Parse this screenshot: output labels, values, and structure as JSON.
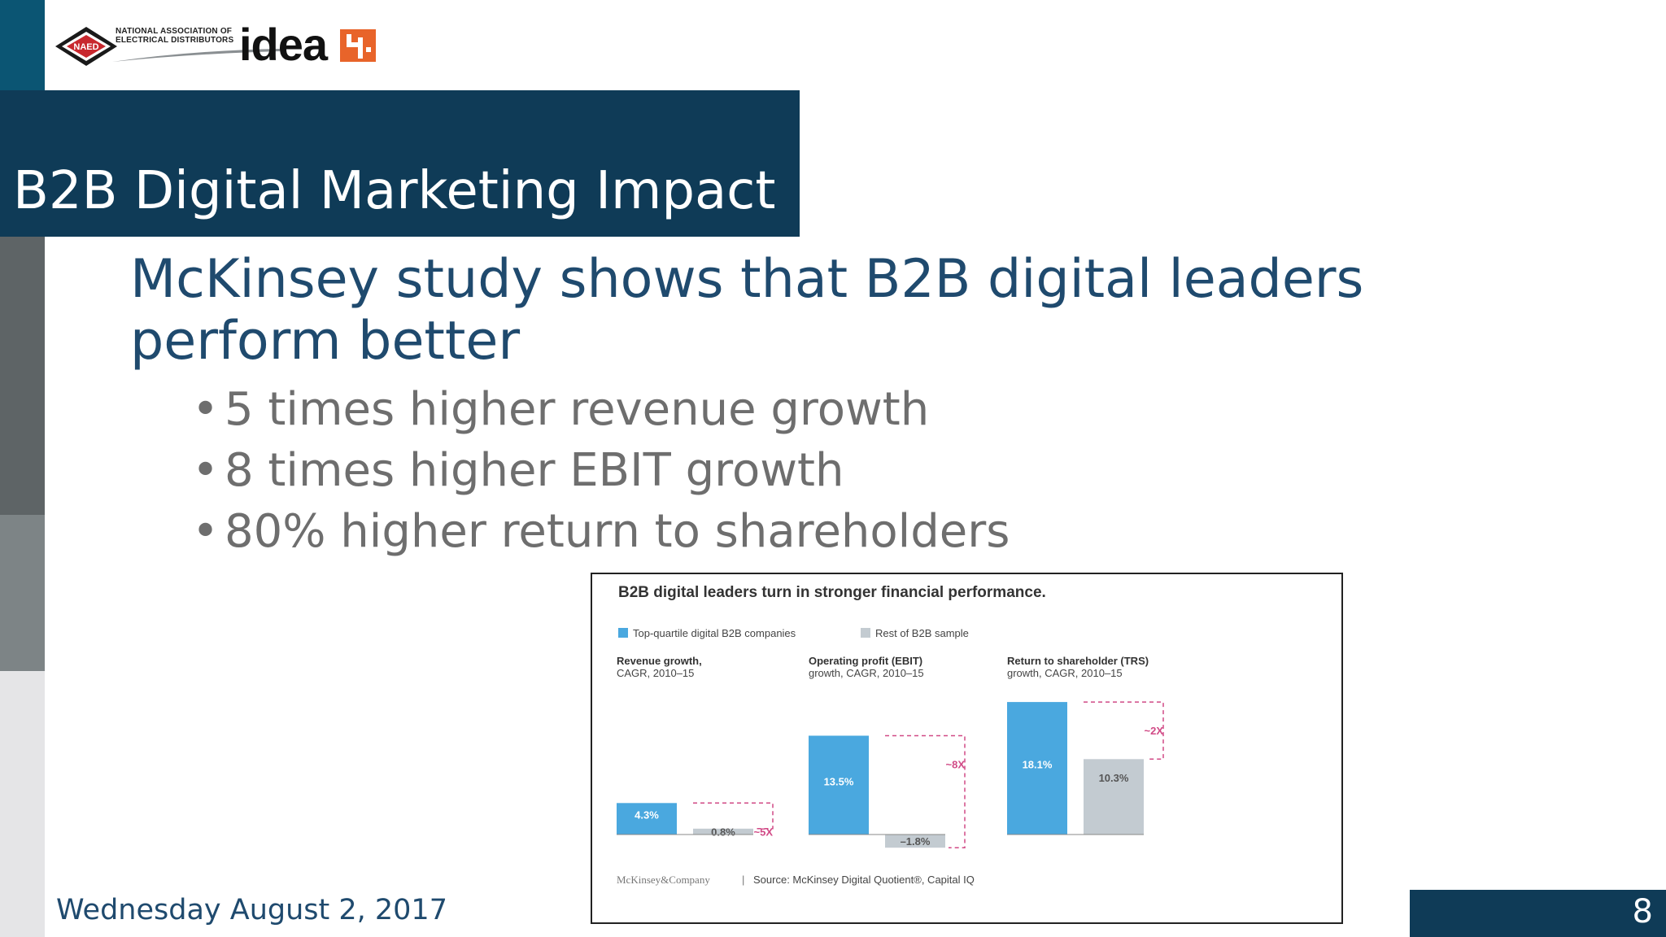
{
  "header": {
    "naed_badge": "NAED",
    "naed_name_line1": "NATIONAL ASSOCIATION OF",
    "naed_name_line2": "ELECTRICAL DISTRIBUTORS",
    "idea_wordmark": "idea"
  },
  "slide": {
    "title": "B2B Digital Marketing Impact",
    "headline": "McKinsey study shows that B2B digital leaders perform better",
    "bullets": [
      "5 times higher revenue growth",
      "8 times higher EBIT growth",
      "80% higher return to shareholders"
    ],
    "bullet_glyph": "•"
  },
  "footer": {
    "date": "Wednesday August 2, 2017",
    "page_number": "8"
  },
  "colors": {
    "title_band": "#0f3b57",
    "headline_text": "#1f4a6e",
    "bullet_text": "#6e6e6e",
    "leader_bar": "#4aa8df",
    "rest_bar": "#c3cbd1",
    "multiplier": "#d14a86"
  },
  "chart_data": {
    "type": "bar",
    "title": "B2B digital leaders turn in stronger financial performance.",
    "legend": [
      "Top-quartile digital B2B companies",
      "Rest of B2B sample"
    ],
    "legend_placement": "top-left",
    "panels": [
      {
        "label_line1": "Revenue growth,",
        "label_line2": "CAGR, 2010–15",
        "leader_value": 4.3,
        "leader_label": "4.3%",
        "rest_value": 0.8,
        "rest_label": "0.8%",
        "multiplier": "~5X"
      },
      {
        "label_line1": "Operating profit (EBIT)",
        "label_line2": "growth, CAGR, 2010–15",
        "leader_value": 13.5,
        "leader_label": "13.5%",
        "rest_value": -1.8,
        "rest_label": "–1.8%",
        "multiplier": "~8X"
      },
      {
        "label_line1": "Return to shareholder (TRS)",
        "label_line2": "growth, CAGR, 2010–15",
        "leader_value": 18.1,
        "leader_label": "18.1%",
        "rest_value": 10.3,
        "rest_label": "10.3%",
        "multiplier": "~2X"
      }
    ],
    "brand": "McKinsey&Company",
    "source": "Source: McKinsey Digital Quotient®, Capital IQ"
  }
}
